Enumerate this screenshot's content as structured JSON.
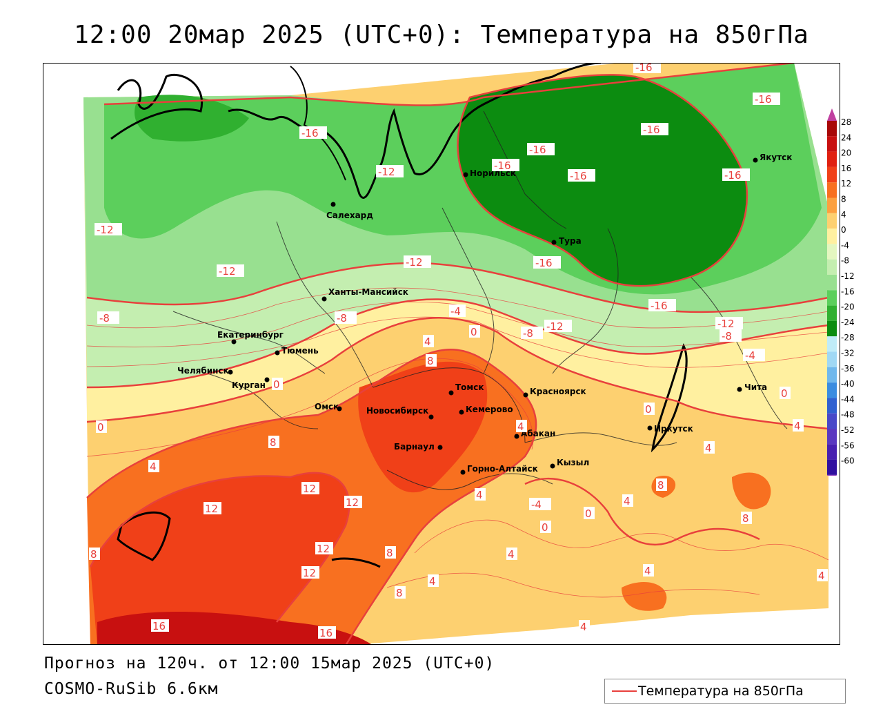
{
  "title": "12:00 20мар 2025 (UTC+0): Температура на 850гПа",
  "footer": {
    "forecast": "Прогноз на 120ч. от 12:00 15мар 2025 (UTC+0)",
    "model": "COSMO-RuSib 6.6км"
  },
  "legend": {
    "label": "Температура на 850гПа",
    "line_color": "#e8403c"
  },
  "colorbar": {
    "levels": [
      "28",
      "24",
      "20",
      "16",
      "12",
      "8",
      "4",
      "0",
      "-4",
      "-8",
      "-12",
      "-16",
      "-20",
      "-24",
      "-28",
      "-32",
      "-36",
      "-40",
      "-44",
      "-48",
      "-52",
      "-56",
      "-60"
    ],
    "colors": [
      "#a80808",
      "#c81010",
      "#e02010",
      "#f04018",
      "#f87020",
      "#fca040",
      "#fdd070",
      "#fff0a0",
      "#e4f7c0",
      "#c4eeb0",
      "#98e090",
      "#5ccf5c",
      "#30b030",
      "#0c8c10",
      "#c0ecf8",
      "#a0d8f4",
      "#70b8ec",
      "#3a8ce0",
      "#3060d0",
      "#4848c8",
      "#5a38c0",
      "#4820b0",
      "#3010a0"
    ],
    "top_color": "#c040a0",
    "bottom_color": "#9040c0"
  },
  "cities": [
    {
      "name": "Норильск"
    },
    {
      "name": "Салехард"
    },
    {
      "name": "Тура"
    },
    {
      "name": "Якутск"
    },
    {
      "name": "Ханты-Мансийск"
    },
    {
      "name": "Екатеринбург"
    },
    {
      "name": "Тюмень"
    },
    {
      "name": "Челябинск"
    },
    {
      "name": "Курган"
    },
    {
      "name": "Омск"
    },
    {
      "name": "Новосибирск"
    },
    {
      "name": "Томск"
    },
    {
      "name": "Кемерово"
    },
    {
      "name": "Барнаул"
    },
    {
      "name": "Горно-Алтайск"
    },
    {
      "name": "Абакан"
    },
    {
      "name": "Кызыл"
    },
    {
      "name": "Красноярск"
    },
    {
      "name": "Иркутск"
    },
    {
      "name": "Чита"
    }
  ],
  "isotherm_labels": [
    "-16",
    "-12",
    "-16",
    "-16",
    "-16",
    "-16",
    "-16",
    "-16",
    "-16",
    "-12",
    "-12",
    "-16",
    "-16",
    "-8",
    "-4",
    "0",
    "-8",
    "-12",
    "-12",
    "-8",
    "-8",
    "-4",
    "0",
    "4",
    "8",
    "0",
    "4",
    "0",
    "0",
    "4",
    "8",
    "12",
    "12",
    "12",
    "12",
    "16",
    "16",
    "12",
    "8",
    "8",
    "4",
    "8",
    "4",
    "4",
    "-4",
    "0",
    "4",
    "8",
    "4",
    "8",
    "4",
    "0",
    "4",
    "4",
    "-12",
    "-16"
  ]
}
